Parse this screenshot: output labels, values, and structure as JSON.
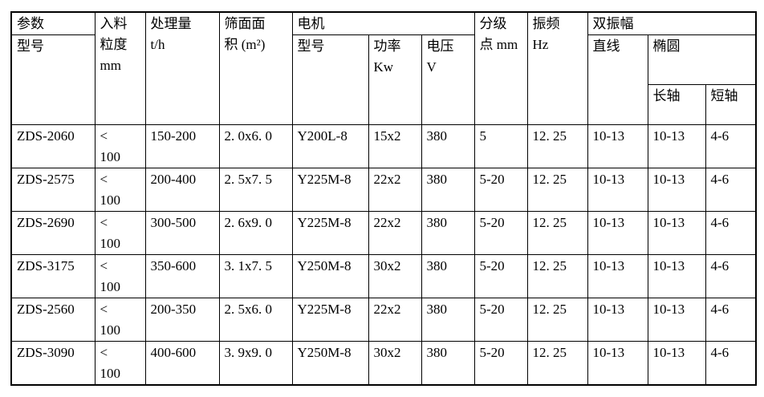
{
  "table": {
    "title_semantic": "ZDS vibrating screen technical parameters table",
    "colors": {
      "border": "#000000",
      "text": "#000000",
      "background": "#ffffff"
    },
    "header": {
      "param_label": "参数",
      "model_label": "型号",
      "feed_size": "入料\n粒度\nmm",
      "capacity": "处理量\nt/h",
      "screen_area": "筛面面\n积 (m²)",
      "motor": "电机",
      "motor_model": "型号",
      "motor_power": "功率\nKw",
      "motor_voltage": "电压\nV",
      "grading_point": "分级\n点 mm",
      "frequency": "振频\nHz",
      "double_amplitude": "双振幅",
      "linear": "直线",
      "ellipse": "椭圆",
      "long_axis": "长轴",
      "short_axis": "短轴"
    },
    "rows": [
      [
        "ZDS-2060",
        "<\n100",
        "150-200",
        "2. 0x6. 0",
        "Y200L-8",
        "15x2",
        "380",
        "5",
        "12. 25",
        "10-13",
        "10-13",
        "4-6"
      ],
      [
        "ZDS-2575",
        "<\n100",
        "200-400",
        "2. 5x7. 5",
        "Y225M-8",
        "22x2",
        "380",
        "5-20",
        "12. 25",
        "10-13",
        "10-13",
        "4-6"
      ],
      [
        "ZDS-2690",
        "<\n100",
        "300-500",
        "2. 6x9. 0",
        "Y225M-8",
        "22x2",
        "380",
        "5-20",
        "12. 25",
        "10-13",
        "10-13",
        "4-6"
      ],
      [
        "ZDS-3175",
        "<\n100",
        "350-600",
        "3. 1x7. 5",
        "Y250M-8",
        "30x2",
        "380",
        "5-20",
        "12. 25",
        "10-13",
        "10-13",
        "4-6"
      ],
      [
        "ZDS-2560",
        "<\n100",
        "200-350",
        "2. 5x6. 0",
        "Y225M-8",
        "22x2",
        "380",
        "5-20",
        "12. 25",
        "10-13",
        "10-13",
        "4-6"
      ],
      [
        "ZDS-3090",
        "<\n100",
        "400-600",
        "3. 9x9. 0",
        "Y250M-8",
        "30x2",
        "380",
        "5-20",
        "12. 25",
        "10-13",
        "10-13",
        "4-6"
      ]
    ]
  }
}
